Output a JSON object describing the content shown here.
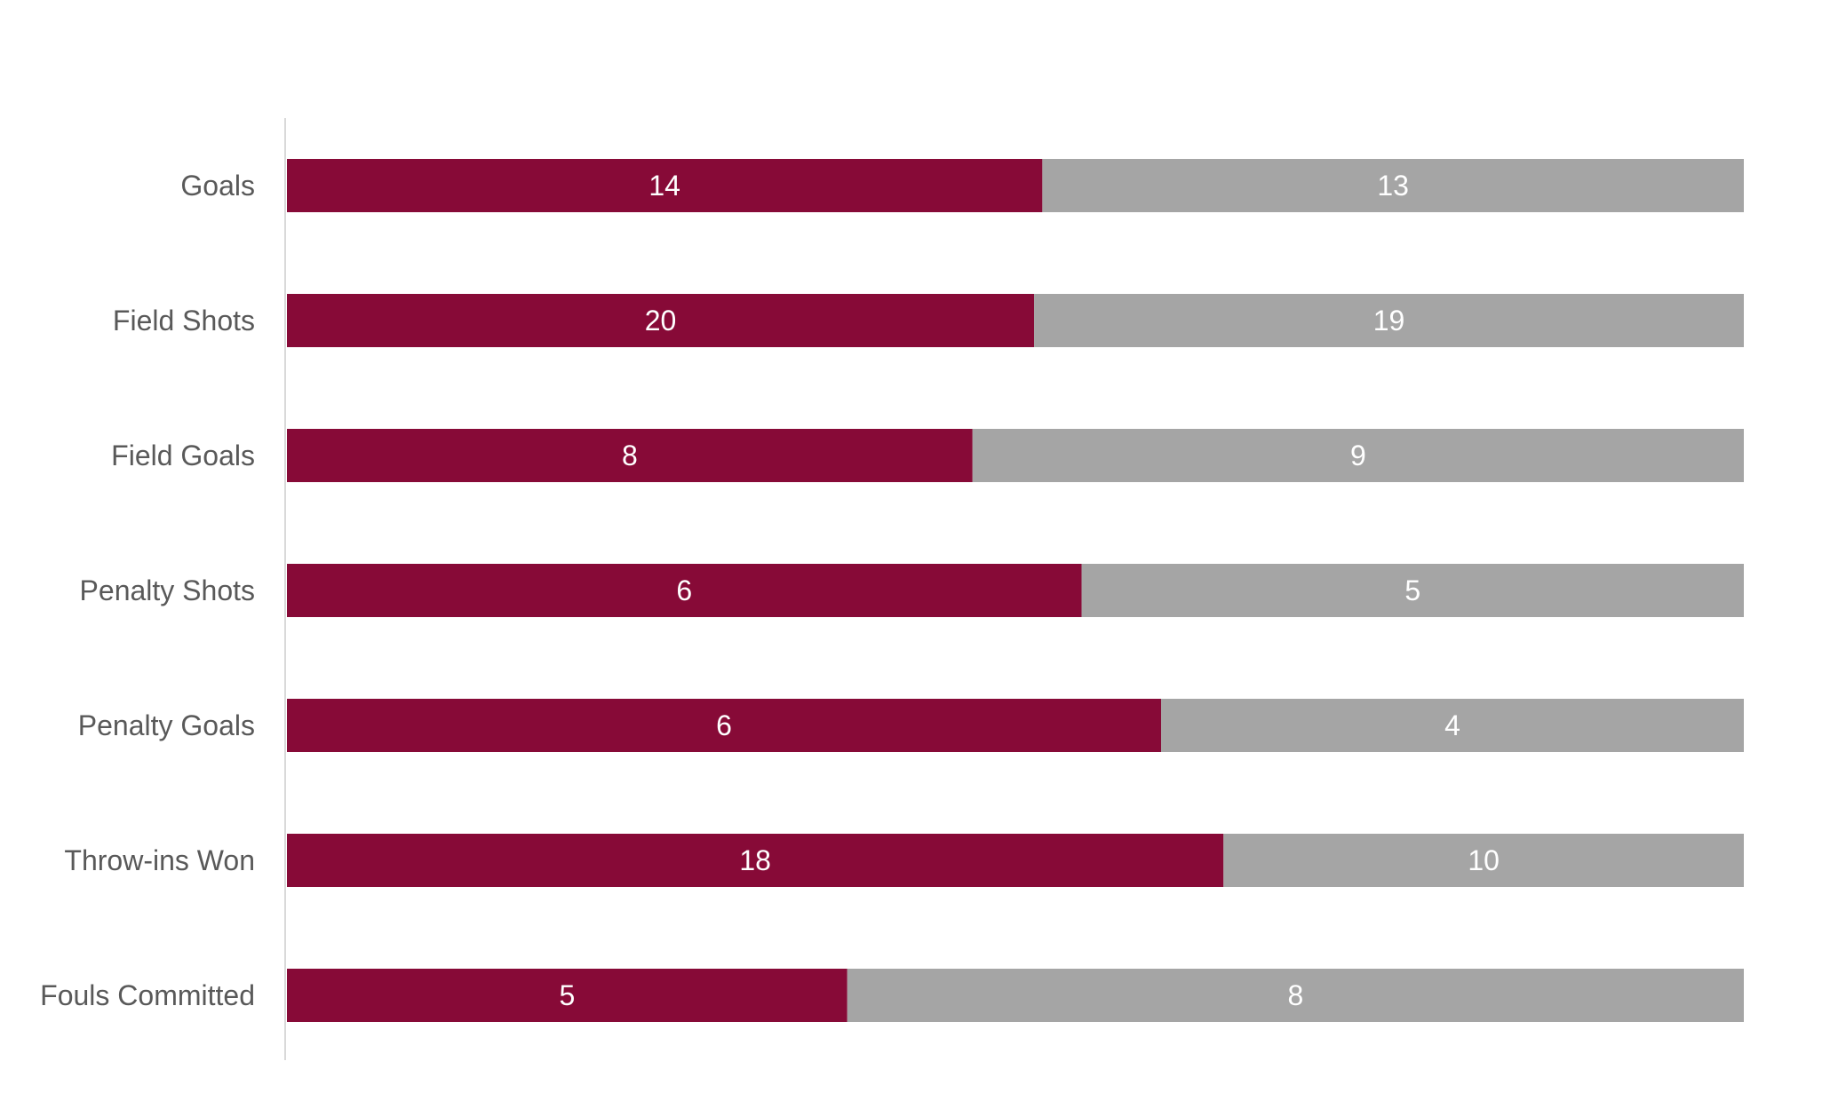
{
  "chart_data": {
    "type": "bar",
    "orientation": "horizontal",
    "stacking": "percent",
    "categories": [
      "Goals",
      "Field Shots",
      "Field Goals",
      "Penalty Shots",
      "Penalty Goals",
      "Throw-ins Won",
      "Fouls Committed"
    ],
    "series": [
      {
        "values": [
          14,
          20,
          8,
          6,
          6,
          18,
          5
        ],
        "color": "#870A37"
      },
      {
        "values": [
          13,
          19,
          9,
          5,
          4,
          10,
          8
        ],
        "color": "#A5A5A5"
      }
    ],
    "title": "",
    "xlabel": "",
    "ylabel": "",
    "grid": false,
    "legend": "none"
  }
}
